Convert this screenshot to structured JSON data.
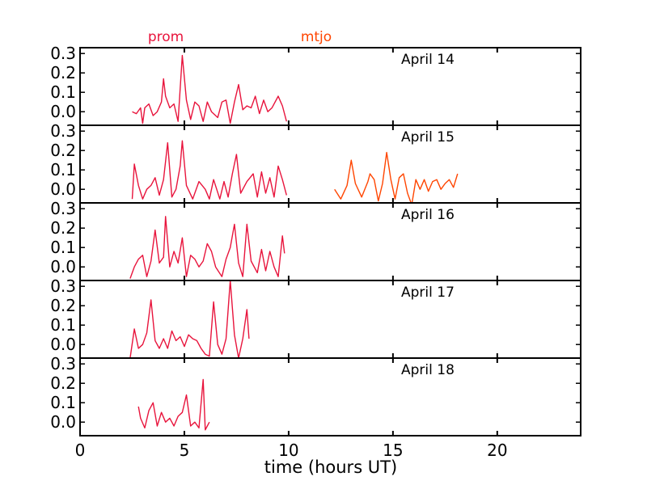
{
  "chart_data": {
    "type": "line",
    "title": "",
    "xlabel": "time (hours UT)",
    "ylabel": "",
    "xlim": [
      0,
      24
    ],
    "ylim": [
      -0.07,
      0.33
    ],
    "x_ticks": [
      0,
      5,
      10,
      15,
      20
    ],
    "y_ticks": [
      0.0,
      0.1,
      0.2,
      0.3
    ],
    "y_tick_labels": [
      "0.0",
      "0.1",
      "0.2",
      "0.3"
    ],
    "grid": false,
    "legend": [
      {
        "name": "prom",
        "color": "#e8143c"
      },
      {
        "name": "mtjo",
        "color": "#ff4500"
      }
    ],
    "panels": [
      {
        "label": "April 14",
        "series": [
          {
            "name": "prom",
            "color": "#e8143c",
            "points": [
              [
                2.5,
                0.0
              ],
              [
                2.7,
                -0.01
              ],
              [
                2.9,
                0.02
              ],
              [
                3.0,
                -0.06
              ],
              [
                3.1,
                0.02
              ],
              [
                3.3,
                0.04
              ],
              [
                3.5,
                -0.02
              ],
              [
                3.7,
                0.0
              ],
              [
                3.9,
                0.05
              ],
              [
                4.0,
                0.17
              ],
              [
                4.1,
                0.08
              ],
              [
                4.3,
                0.02
              ],
              [
                4.5,
                0.04
              ],
              [
                4.7,
                -0.05
              ],
              [
                4.9,
                0.29
              ],
              [
                5.1,
                0.06
              ],
              [
                5.3,
                -0.04
              ],
              [
                5.5,
                0.05
              ],
              [
                5.7,
                0.03
              ],
              [
                5.9,
                -0.05
              ],
              [
                6.1,
                0.05
              ],
              [
                6.3,
                0.0
              ],
              [
                6.6,
                -0.03
              ],
              [
                6.8,
                0.05
              ],
              [
                7.0,
                0.06
              ],
              [
                7.2,
                -0.06
              ],
              [
                7.4,
                0.05
              ],
              [
                7.6,
                0.14
              ],
              [
                7.8,
                0.01
              ],
              [
                8.0,
                0.03
              ],
              [
                8.2,
                0.02
              ],
              [
                8.4,
                0.08
              ],
              [
                8.6,
                -0.01
              ],
              [
                8.8,
                0.06
              ],
              [
                9.0,
                0.0
              ],
              [
                9.2,
                0.02
              ],
              [
                9.5,
                0.08
              ],
              [
                9.7,
                0.03
              ],
              [
                9.9,
                -0.05
              ]
            ]
          }
        ]
      },
      {
        "label": "April 15",
        "series": [
          {
            "name": "prom",
            "color": "#e8143c",
            "points": [
              [
                2.5,
                -0.05
              ],
              [
                2.6,
                0.13
              ],
              [
                2.8,
                0.02
              ],
              [
                3.0,
                -0.05
              ],
              [
                3.2,
                0.0
              ],
              [
                3.4,
                0.02
              ],
              [
                3.6,
                0.06
              ],
              [
                3.8,
                -0.03
              ],
              [
                4.0,
                0.05
              ],
              [
                4.2,
                0.24
              ],
              [
                4.4,
                -0.04
              ],
              [
                4.6,
                0.0
              ],
              [
                4.8,
                0.12
              ],
              [
                4.9,
                0.25
              ],
              [
                5.1,
                0.02
              ],
              [
                5.4,
                -0.05
              ],
              [
                5.7,
                0.04
              ],
              [
                6.0,
                0.0
              ],
              [
                6.2,
                -0.05
              ],
              [
                6.4,
                0.05
              ],
              [
                6.7,
                -0.05
              ],
              [
                6.9,
                0.04
              ],
              [
                7.1,
                -0.04
              ],
              [
                7.3,
                0.08
              ],
              [
                7.5,
                0.18
              ],
              [
                7.7,
                -0.02
              ],
              [
                8.0,
                0.04
              ],
              [
                8.3,
                0.08
              ],
              [
                8.5,
                -0.04
              ],
              [
                8.7,
                0.09
              ],
              [
                8.9,
                -0.02
              ],
              [
                9.1,
                0.06
              ],
              [
                9.3,
                -0.04
              ],
              [
                9.5,
                0.12
              ],
              [
                9.7,
                0.05
              ],
              [
                9.9,
                -0.03
              ]
            ]
          },
          {
            "name": "mtjo",
            "color": "#ff4500",
            "points": [
              [
                12.2,
                0.0
              ],
              [
                12.5,
                -0.05
              ],
              [
                12.8,
                0.02
              ],
              [
                13.0,
                0.15
              ],
              [
                13.2,
                0.03
              ],
              [
                13.5,
                -0.04
              ],
              [
                13.8,
                0.04
              ],
              [
                13.9,
                0.08
              ],
              [
                14.1,
                0.05
              ],
              [
                14.3,
                -0.06
              ],
              [
                14.5,
                0.03
              ],
              [
                14.7,
                0.19
              ],
              [
                14.9,
                0.05
              ],
              [
                15.1,
                -0.05
              ],
              [
                15.3,
                0.06
              ],
              [
                15.5,
                0.08
              ],
              [
                15.7,
                -0.02
              ],
              [
                15.9,
                -0.08
              ],
              [
                16.1,
                0.05
              ],
              [
                16.3,
                0.0
              ],
              [
                16.5,
                0.05
              ],
              [
                16.7,
                -0.01
              ],
              [
                16.9,
                0.04
              ],
              [
                17.1,
                0.05
              ],
              [
                17.3,
                0.0
              ],
              [
                17.5,
                0.03
              ],
              [
                17.7,
                0.05
              ],
              [
                17.9,
                0.01
              ],
              [
                18.1,
                0.08
              ]
            ]
          }
        ]
      },
      {
        "label": "April 16",
        "series": [
          {
            "name": "prom",
            "color": "#e8143c",
            "points": [
              [
                2.4,
                -0.06
              ],
              [
                2.6,
                0.0
              ],
              [
                2.8,
                0.04
              ],
              [
                3.0,
                0.06
              ],
              [
                3.2,
                -0.05
              ],
              [
                3.4,
                0.03
              ],
              [
                3.6,
                0.19
              ],
              [
                3.8,
                0.02
              ],
              [
                4.0,
                0.05
              ],
              [
                4.1,
                0.26
              ],
              [
                4.3,
                0.0
              ],
              [
                4.5,
                0.08
              ],
              [
                4.7,
                0.02
              ],
              [
                4.9,
                0.15
              ],
              [
                5.1,
                -0.05
              ],
              [
                5.3,
                0.06
              ],
              [
                5.5,
                0.04
              ],
              [
                5.7,
                0.0
              ],
              [
                5.9,
                0.03
              ],
              [
                6.1,
                0.12
              ],
              [
                6.3,
                0.08
              ],
              [
                6.5,
                0.0
              ],
              [
                6.8,
                -0.05
              ],
              [
                7.0,
                0.04
              ],
              [
                7.2,
                0.1
              ],
              [
                7.4,
                0.22
              ],
              [
                7.6,
                0.02
              ],
              [
                7.8,
                -0.05
              ],
              [
                8.0,
                0.22
              ],
              [
                8.2,
                0.03
              ],
              [
                8.5,
                -0.03
              ],
              [
                8.7,
                0.09
              ],
              [
                8.9,
                -0.02
              ],
              [
                9.1,
                0.08
              ],
              [
                9.3,
                0.0
              ],
              [
                9.5,
                -0.05
              ],
              [
                9.7,
                0.16
              ],
              [
                9.8,
                0.07
              ]
            ]
          }
        ]
      },
      {
        "label": "April 17",
        "series": [
          {
            "name": "prom",
            "color": "#e8143c",
            "points": [
              [
                2.4,
                -0.07
              ],
              [
                2.6,
                0.08
              ],
              [
                2.8,
                -0.02
              ],
              [
                3.0,
                0.0
              ],
              [
                3.2,
                0.06
              ],
              [
                3.4,
                0.23
              ],
              [
                3.6,
                0.02
              ],
              [
                3.8,
                -0.02
              ],
              [
                4.0,
                0.03
              ],
              [
                4.2,
                -0.02
              ],
              [
                4.4,
                0.07
              ],
              [
                4.6,
                0.02
              ],
              [
                4.8,
                0.04
              ],
              [
                5.0,
                -0.01
              ],
              [
                5.2,
                0.05
              ],
              [
                5.4,
                0.03
              ],
              [
                5.6,
                0.02
              ],
              [
                5.8,
                -0.02
              ],
              [
                6.0,
                -0.05
              ],
              [
                6.2,
                -0.06
              ],
              [
                6.4,
                0.22
              ],
              [
                6.6,
                0.0
              ],
              [
                6.8,
                -0.05
              ],
              [
                7.0,
                0.03
              ],
              [
                7.2,
                0.33
              ],
              [
                7.4,
                0.05
              ],
              [
                7.6,
                -0.07
              ],
              [
                7.8,
                0.03
              ],
              [
                8.0,
                0.18
              ],
              [
                8.1,
                0.03
              ]
            ]
          }
        ]
      },
      {
        "label": "April 18",
        "series": [
          {
            "name": "prom",
            "color": "#e8143c",
            "points": [
              [
                2.8,
                0.08
              ],
              [
                2.9,
                0.02
              ],
              [
                3.1,
                -0.03
              ],
              [
                3.3,
                0.06
              ],
              [
                3.5,
                0.1
              ],
              [
                3.7,
                -0.02
              ],
              [
                3.9,
                0.05
              ],
              [
                4.1,
                0.0
              ],
              [
                4.3,
                0.02
              ],
              [
                4.5,
                -0.02
              ],
              [
                4.7,
                0.03
              ],
              [
                4.9,
                0.05
              ],
              [
                5.1,
                0.14
              ],
              [
                5.3,
                -0.02
              ],
              [
                5.5,
                0.0
              ],
              [
                5.7,
                -0.03
              ],
              [
                5.9,
                0.22
              ],
              [
                6.0,
                -0.04
              ],
              [
                6.2,
                0.0
              ]
            ]
          }
        ]
      }
    ]
  }
}
